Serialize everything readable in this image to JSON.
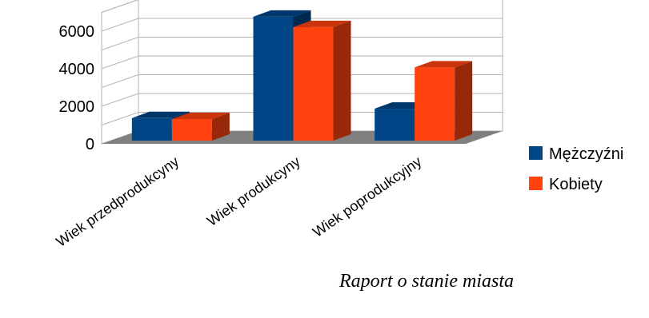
{
  "chart_data": {
    "type": "bar",
    "variant": "3d-clustered-column",
    "categories": [
      "Wiek przedprodukcyny",
      "Wiek produkcyny",
      "Wiek poprodukcyjny"
    ],
    "series": [
      {
        "name": "Mężczyźni",
        "values": [
          1200,
          6600,
          1700
        ],
        "color": "#004586"
      },
      {
        "name": "Kobiety",
        "values": [
          1150,
          6050,
          3900
        ],
        "color": "#ff420e"
      }
    ],
    "ylim": [
      0,
      7000
    ],
    "yticks": [
      0,
      2000,
      4000,
      6000
    ],
    "grid": true,
    "legend_position": "right"
  },
  "caption": "Raport o stanie miasta"
}
